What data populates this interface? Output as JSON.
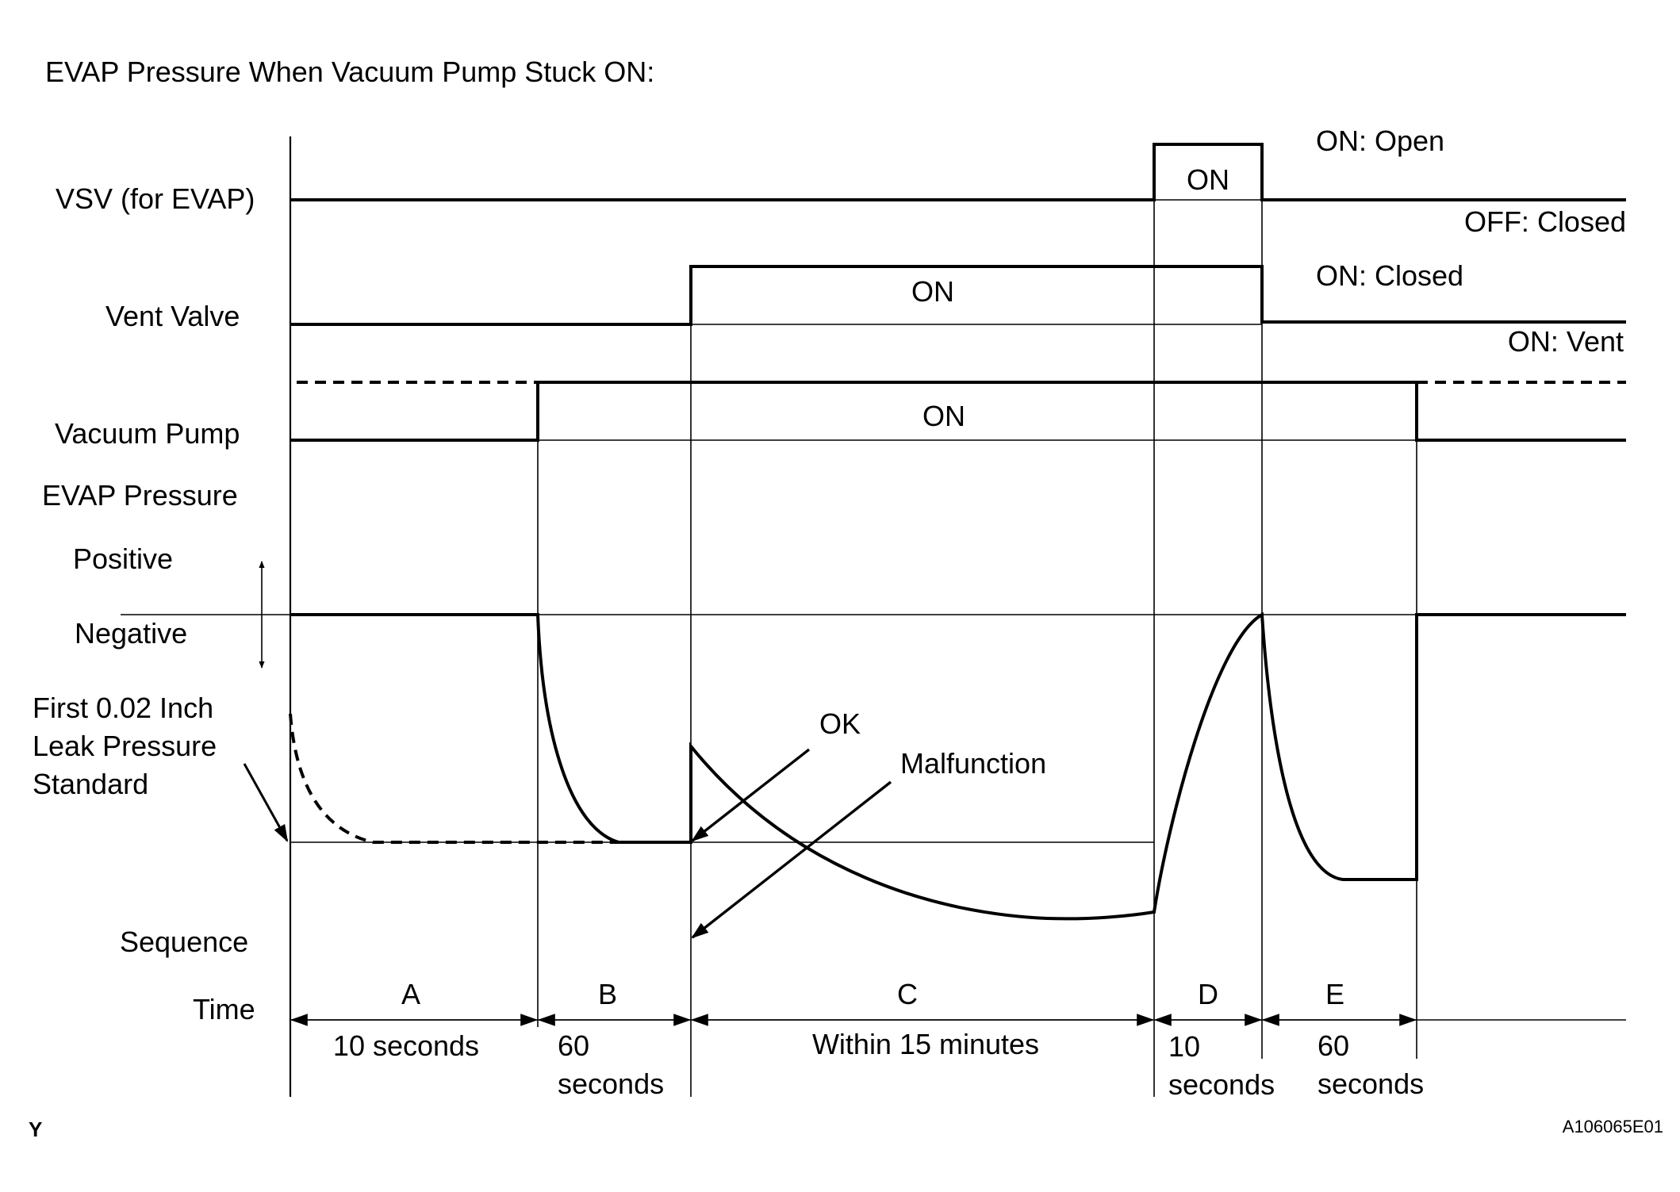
{
  "title": "EVAP Pressure When Vacuum Pump Stuck ON:",
  "signals": {
    "vsv": {
      "label": "VSV (for EVAP)",
      "on_text": "ON",
      "state_on": "ON: Open",
      "state_off": "OFF: Closed"
    },
    "vent": {
      "label": "Vent Valve",
      "on_text": "ON",
      "state_on": "ON: Closed",
      "state_off": "ON: Vent"
    },
    "pump": {
      "label": "Vacuum Pump",
      "on_text": "ON"
    }
  },
  "pressure": {
    "label": "EVAP Pressure",
    "positive": "Positive",
    "negative": "Negative",
    "standard": [
      "First 0.02 Inch",
      "Leak Pressure",
      "Standard"
    ],
    "ok": "OK",
    "malfunction": "Malfunction"
  },
  "sequence": {
    "label": "Sequence",
    "time_label": "Time",
    "steps": [
      {
        "id": "A",
        "time": [
          "10 seconds"
        ]
      },
      {
        "id": "B",
        "time": [
          "60",
          "seconds"
        ]
      },
      {
        "id": "C",
        "time": [
          "Within 15 minutes"
        ]
      },
      {
        "id": "D",
        "time": [
          "10",
          "seconds"
        ]
      },
      {
        "id": "E",
        "time": [
          "60",
          "seconds"
        ]
      }
    ]
  },
  "corner_letter": "Y",
  "figure_code": "A106065E01"
}
